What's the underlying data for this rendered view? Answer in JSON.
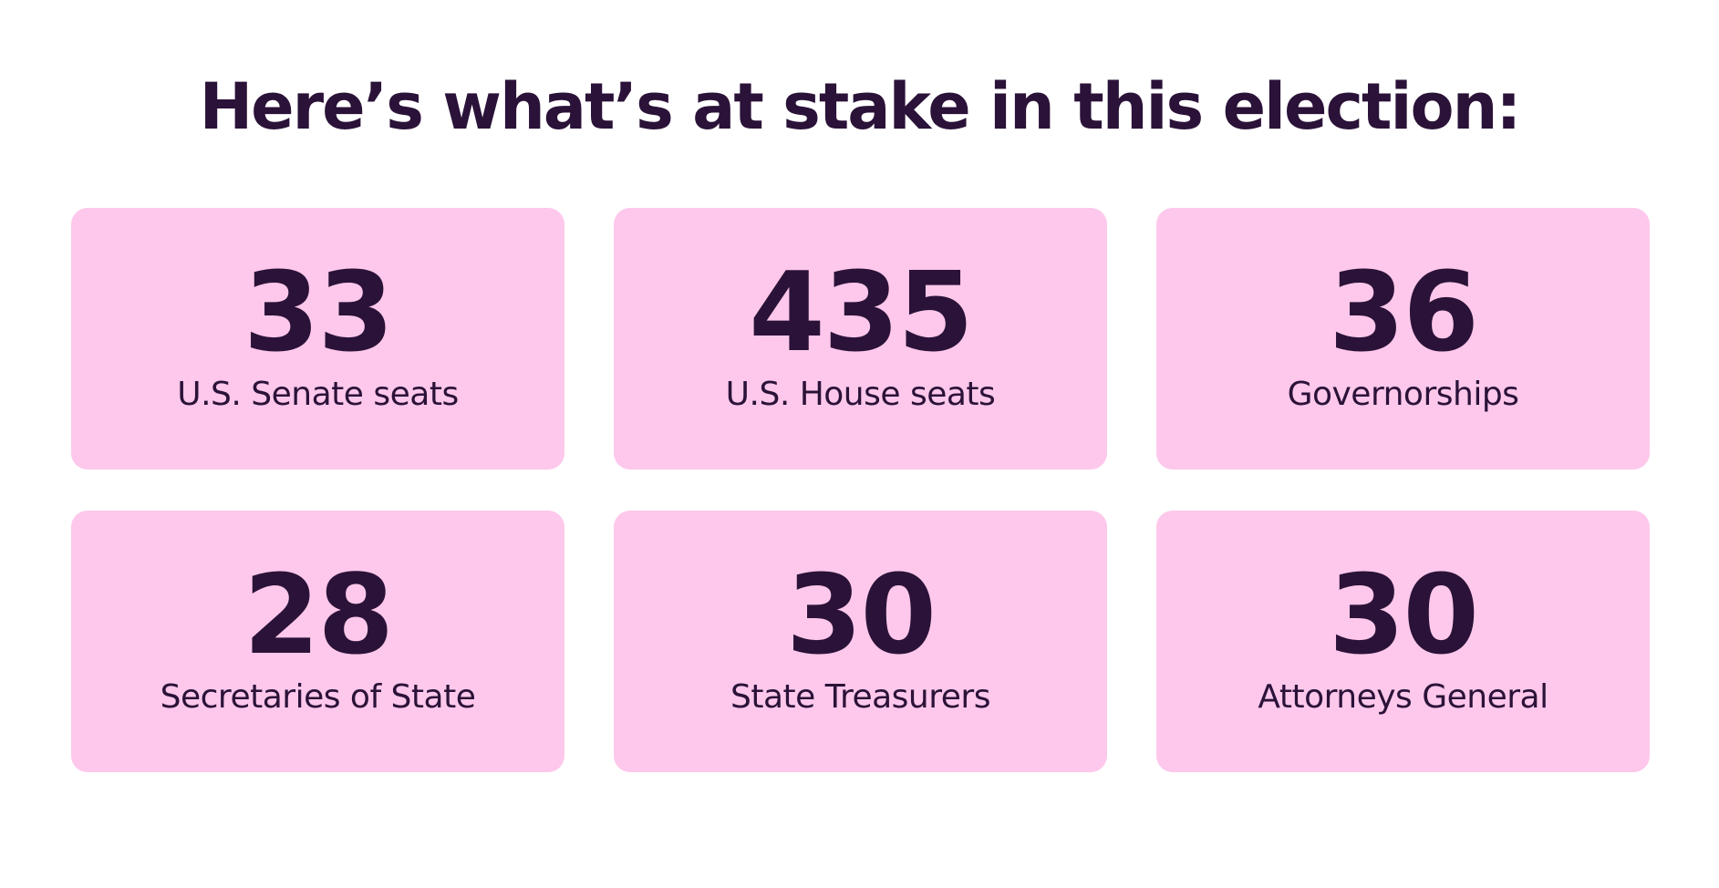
{
  "headline": "Here’s what’s at stake in this election:",
  "colors": {
    "card_background": "#fdc8eb",
    "text": "#2b1238",
    "page_background": "#ffffff"
  },
  "cards": [
    {
      "number": "33",
      "label": "U.S. Senate seats"
    },
    {
      "number": "435",
      "label": "U.S. House seats"
    },
    {
      "number": "36",
      "label": "Governorships"
    },
    {
      "number": "28",
      "label": "Secretaries of State"
    },
    {
      "number": "30",
      "label": "State Treasurers"
    },
    {
      "number": "30",
      "label": "Attorneys General"
    }
  ]
}
